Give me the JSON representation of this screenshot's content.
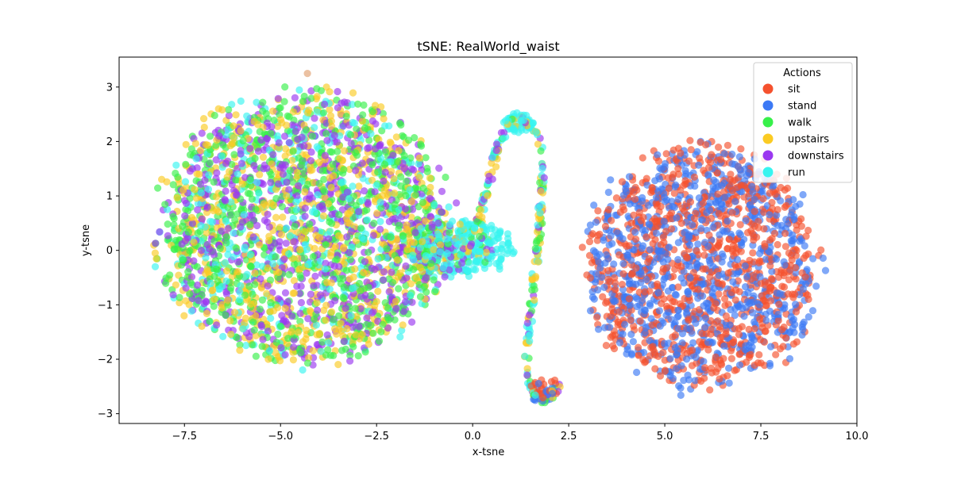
{
  "chart_data": {
    "type": "scatter",
    "title": "tSNE: RealWorld_waist",
    "xlabel": "x-tsne",
    "ylabel": "y-tsne",
    "xlim": [
      -9.2,
      10.0
    ],
    "ylim": [
      -3.18,
      3.55
    ],
    "grid": false,
    "xticks": [
      -7.5,
      -5.0,
      -2.5,
      0.0,
      2.5,
      5.0,
      7.5,
      10.0
    ],
    "xtick_labels": [
      "−7.5",
      "−5.0",
      "−2.5",
      "0.0",
      "2.5",
      "5.0",
      "7.5",
      "10.0"
    ],
    "yticks": [
      -3,
      -2,
      -1,
      0,
      1,
      2,
      3
    ],
    "ytick_labels": [
      "−3",
      "−2",
      "−1",
      "0",
      "1",
      "2",
      "3"
    ],
    "legend": {
      "title": "Actions",
      "position": "top-right"
    },
    "series": [
      {
        "name": "sit",
        "color": "#f5512e",
        "clusters": [
          {
            "cx": 6.0,
            "cy": -0.3,
            "rx": 3.1,
            "ry": 2.3,
            "n": 900
          },
          {
            "cx": 1.9,
            "cy": -2.55,
            "rx": 0.45,
            "ry": 0.2,
            "n": 25
          }
        ]
      },
      {
        "name": "stand",
        "color": "#3c79f5",
        "clusters": [
          {
            "cx": 6.0,
            "cy": -0.3,
            "rx": 3.1,
            "ry": 2.3,
            "n": 850
          },
          {
            "cx": 1.8,
            "cy": -2.6,
            "rx": 0.4,
            "ry": 0.2,
            "n": 20
          }
        ]
      },
      {
        "name": "walk",
        "color": "#37f04a",
        "clusters": [
          {
            "cx": -4.4,
            "cy": 0.4,
            "rx": 3.9,
            "ry": 2.55,
            "n": 800
          },
          {
            "cx": -0.6,
            "cy": 0.05,
            "rx": 1.2,
            "ry": 0.5,
            "n": 40
          }
        ]
      },
      {
        "name": "upstairs",
        "color": "#fbcb23",
        "clusters": [
          {
            "cx": -4.4,
            "cy": 0.4,
            "rx": 3.9,
            "ry": 2.55,
            "n": 700
          },
          {
            "cx": -0.6,
            "cy": 0.05,
            "rx": 1.2,
            "ry": 0.5,
            "n": 40
          }
        ]
      },
      {
        "name": "downstairs",
        "color": "#9a38f0",
        "clusters": [
          {
            "cx": -4.4,
            "cy": 0.4,
            "rx": 3.9,
            "ry": 2.55,
            "n": 700
          },
          {
            "cx": -0.6,
            "cy": 0.05,
            "rx": 1.2,
            "ry": 0.5,
            "n": 40
          }
        ]
      },
      {
        "name": "run",
        "color": "#38f4f0",
        "clusters": [
          {
            "cx": -4.4,
            "cy": 0.4,
            "rx": 3.9,
            "ry": 2.55,
            "n": 350
          },
          {
            "cx": -0.3,
            "cy": 0.05,
            "rx": 1.4,
            "ry": 0.55,
            "n": 220
          },
          {
            "cx": 1.2,
            "cy": 2.35,
            "rx": 0.4,
            "ry": 0.18,
            "n": 50
          }
        ]
      }
    ],
    "bridge": {
      "points": [
        [
          0.1,
          0.4
        ],
        [
          0.4,
          1.1
        ],
        [
          0.6,
          1.8
        ],
        [
          0.9,
          2.25
        ],
        [
          1.3,
          2.45
        ],
        [
          1.7,
          2.2
        ],
        [
          1.85,
          1.6
        ],
        [
          1.75,
          0.6
        ],
        [
          1.65,
          -0.3
        ],
        [
          1.5,
          -1.2
        ],
        [
          1.4,
          -2.1
        ],
        [
          1.55,
          -2.65
        ],
        [
          1.9,
          -2.75
        ],
        [
          2.3,
          -2.5
        ]
      ],
      "n": 220,
      "spread": 0.07,
      "series_mix": [
        "run",
        "upstairs",
        "walk",
        "downstairs",
        "run",
        "upstairs"
      ]
    },
    "outliers": [
      {
        "x": -4.3,
        "y": 3.25,
        "color": "#e0a070"
      }
    ]
  }
}
